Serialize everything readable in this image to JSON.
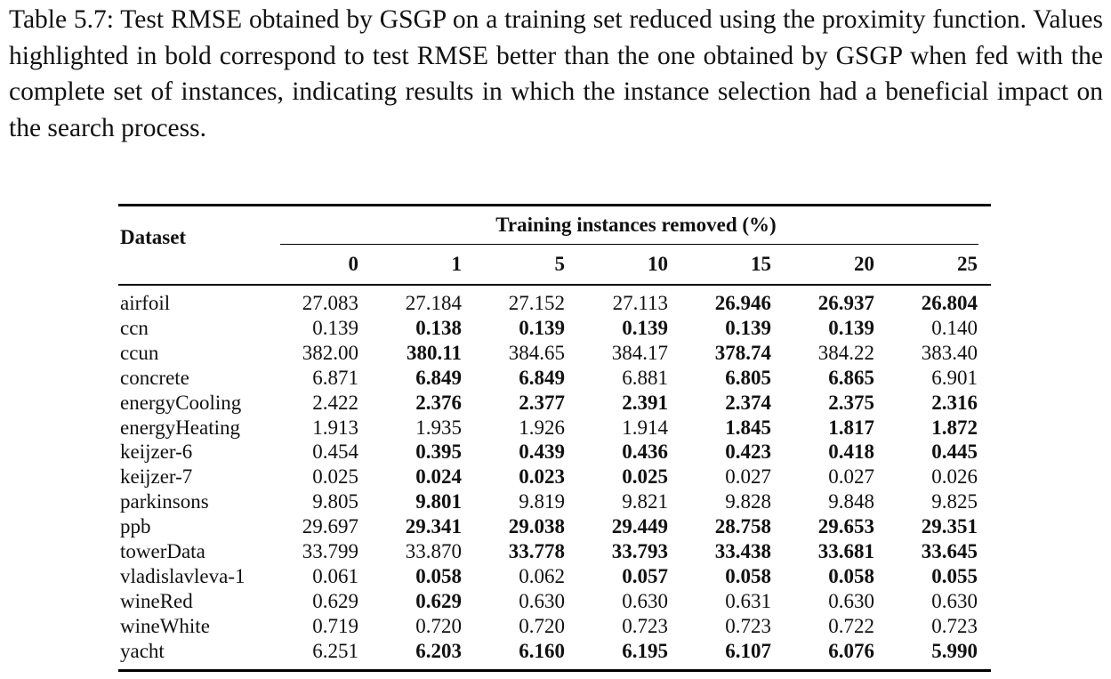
{
  "caption": "Table 5.7: Test RMSE obtained by GSGP on a training set reduced using the proximity function. Values highlighted in bold correspond to test RMSE better than the one obtained by GSGP when fed with the complete set of instances, indicating results in which the instance selection had a beneficial impact on the search process.",
  "table": {
    "header": {
      "first": "Dataset",
      "group": "Training instances removed (%)",
      "columns": [
        0,
        1,
        5,
        10,
        15,
        20,
        25
      ]
    },
    "rows": [
      {
        "dataset": "airfoil",
        "values": [
          "27.083",
          "27.184",
          "27.152",
          "27.113",
          "26.946",
          "26.937",
          "26.804"
        ],
        "bold": [
          false,
          false,
          false,
          false,
          true,
          true,
          true
        ]
      },
      {
        "dataset": "ccn",
        "values": [
          "0.139",
          "0.138",
          "0.139",
          "0.139",
          "0.139",
          "0.139",
          "0.140"
        ],
        "bold": [
          false,
          true,
          true,
          true,
          true,
          true,
          false
        ]
      },
      {
        "dataset": "ccun",
        "values": [
          "382.00",
          "380.11",
          "384.65",
          "384.17",
          "378.74",
          "384.22",
          "383.40"
        ],
        "bold": [
          false,
          true,
          false,
          false,
          true,
          false,
          false
        ]
      },
      {
        "dataset": "concrete",
        "values": [
          "6.871",
          "6.849",
          "6.849",
          "6.881",
          "6.805",
          "6.865",
          "6.901"
        ],
        "bold": [
          false,
          true,
          true,
          false,
          true,
          true,
          false
        ]
      },
      {
        "dataset": "energyCooling",
        "values": [
          "2.422",
          "2.376",
          "2.377",
          "2.391",
          "2.374",
          "2.375",
          "2.316"
        ],
        "bold": [
          false,
          true,
          true,
          true,
          true,
          true,
          true
        ]
      },
      {
        "dataset": "energyHeating",
        "values": [
          "1.913",
          "1.935",
          "1.926",
          "1.914",
          "1.845",
          "1.817",
          "1.872"
        ],
        "bold": [
          false,
          false,
          false,
          false,
          true,
          true,
          true
        ]
      },
      {
        "dataset": "keijzer-6",
        "values": [
          "0.454",
          "0.395",
          "0.439",
          "0.436",
          "0.423",
          "0.418",
          "0.445"
        ],
        "bold": [
          false,
          true,
          true,
          true,
          true,
          true,
          true
        ]
      },
      {
        "dataset": "keijzer-7",
        "values": [
          "0.025",
          "0.024",
          "0.023",
          "0.025",
          "0.027",
          "0.027",
          "0.026"
        ],
        "bold": [
          false,
          true,
          true,
          true,
          false,
          false,
          false
        ]
      },
      {
        "dataset": "parkinsons",
        "values": [
          "9.805",
          "9.801",
          "9.819",
          "9.821",
          "9.828",
          "9.848",
          "9.825"
        ],
        "bold": [
          false,
          true,
          false,
          false,
          false,
          false,
          false
        ]
      },
      {
        "dataset": "ppb",
        "values": [
          "29.697",
          "29.341",
          "29.038",
          "29.449",
          "28.758",
          "29.653",
          "29.351"
        ],
        "bold": [
          false,
          true,
          true,
          true,
          true,
          true,
          true
        ]
      },
      {
        "dataset": "towerData",
        "values": [
          "33.799",
          "33.870",
          "33.778",
          "33.793",
          "33.438",
          "33.681",
          "33.645"
        ],
        "bold": [
          false,
          false,
          true,
          true,
          true,
          true,
          true
        ]
      },
      {
        "dataset": "vladislavleva-1",
        "values": [
          "0.061",
          "0.058",
          "0.062",
          "0.057",
          "0.058",
          "0.058",
          "0.055"
        ],
        "bold": [
          false,
          true,
          false,
          true,
          true,
          true,
          true
        ]
      },
      {
        "dataset": "wineRed",
        "values": [
          "0.629",
          "0.629",
          "0.630",
          "0.630",
          "0.631",
          "0.630",
          "0.630"
        ],
        "bold": [
          false,
          true,
          false,
          false,
          false,
          false,
          false
        ]
      },
      {
        "dataset": "wineWhite",
        "values": [
          "0.719",
          "0.720",
          "0.720",
          "0.723",
          "0.723",
          "0.722",
          "0.723"
        ],
        "bold": [
          false,
          false,
          false,
          false,
          false,
          false,
          false
        ]
      },
      {
        "dataset": "yacht",
        "values": [
          "6.251",
          "6.203",
          "6.160",
          "6.195",
          "6.107",
          "6.076",
          "5.990"
        ],
        "bold": [
          false,
          true,
          true,
          true,
          true,
          true,
          true
        ]
      }
    ]
  }
}
